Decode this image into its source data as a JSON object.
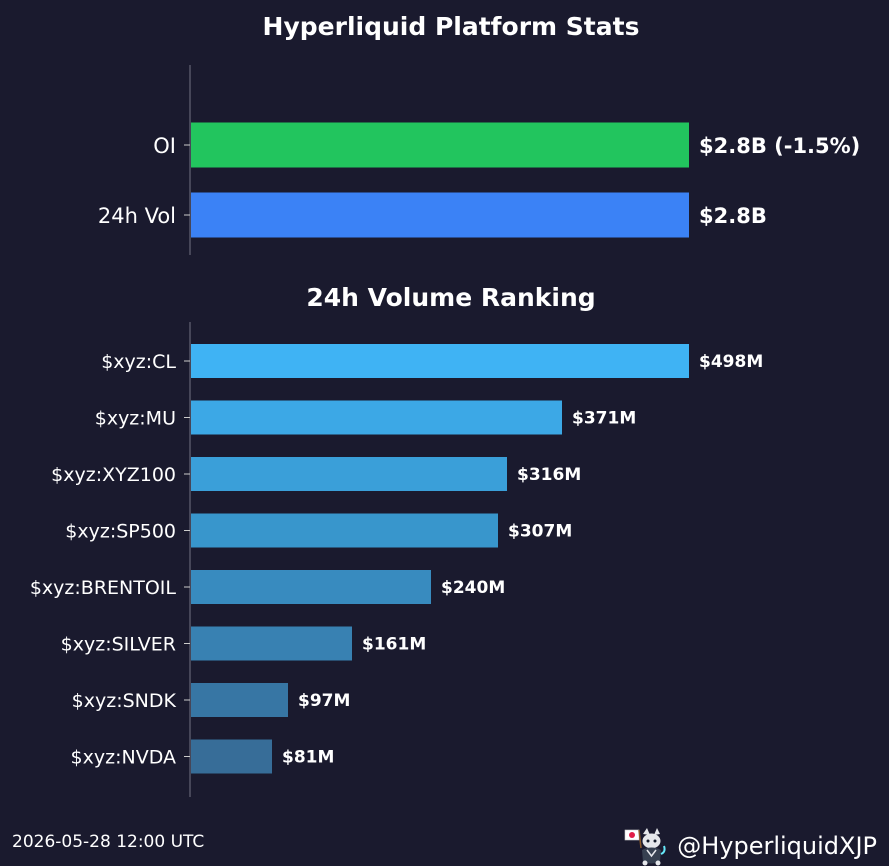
{
  "chart_data": [
    {
      "type": "bar",
      "orientation": "horizontal",
      "title": "Hyperliquid Platform Stats",
      "categories": [
        "OI",
        "24h Vol"
      ],
      "values": [
        2.8,
        2.8
      ],
      "units": "B USD",
      "value_labels": [
        "$2.8B (-1.5%)",
        "$2.8B"
      ],
      "colors": [
        "#22c55e",
        "#3b82f6"
      ],
      "xlim": [
        0,
        2.8
      ],
      "grid": false
    },
    {
      "type": "bar",
      "orientation": "horizontal",
      "title": "24h Volume Ranking",
      "categories": [
        "$xyz:CL",
        "$xyz:MU",
        "$xyz:XYZ100",
        "$xyz:SP500",
        "$xyz:BRENTOIL",
        "$xyz:SILVER",
        "$xyz:SNDK",
        "$xyz:NVDA"
      ],
      "values": [
        498,
        371,
        316,
        307,
        240,
        161,
        97,
        81
      ],
      "units": "M USD",
      "value_labels": [
        "$498M",
        "$371M",
        "$316M",
        "$307M",
        "$240M",
        "$161M",
        "$97M",
        "$81M"
      ],
      "colors": [
        "#3fb3f4",
        "#3ca8e6",
        "#3a9fd9",
        "#3896cc",
        "#388bbf",
        "#3881b2",
        "#3776a4",
        "#376d98"
      ],
      "xlim": [
        0,
        498
      ],
      "grid": false
    }
  ],
  "footer": {
    "timestamp": "2026-05-28 12:00 UTC",
    "handle": "@HyperliquidXJP"
  },
  "icons": {
    "logo": "mascot-logo-icon"
  }
}
